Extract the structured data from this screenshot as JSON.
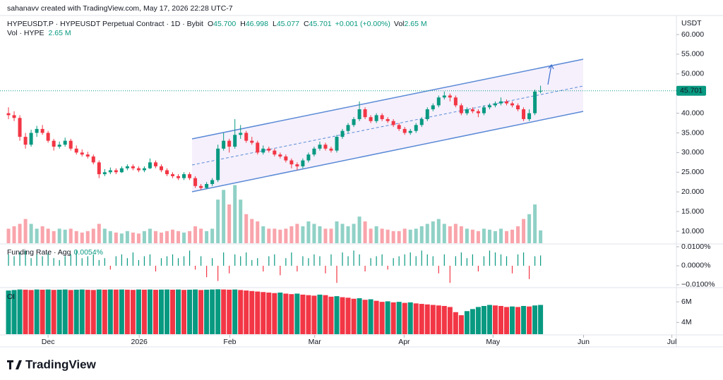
{
  "header": {
    "author_line": "sahanavv created with TradingView.com, May 17, 2026 22:28 UTC-7",
    "symbol": "HYPEUSDT.P · HYPEUSDT Perpetual Contract · 1D · Bybit",
    "ohlc_legend": [
      {
        "key": "O",
        "value": "45.700"
      },
      {
        "key": "H",
        "value": "46.998"
      },
      {
        "key": "L",
        "value": "45.077"
      },
      {
        "key": "C",
        "value": "45.701"
      }
    ],
    "change": "+0.001 (+0.00%)",
    "vol_key": "Vol",
    "vol_value": "2.65 M",
    "vol_study": "Vol · HYPE",
    "vol_study_value": "2.65 M"
  },
  "chart_data": {
    "type": "candlestick",
    "currency": "USDT",
    "up_color": "#089981",
    "down_color": "#f23645",
    "ohlc": [
      [
        40,
        41.5,
        38.5,
        39.5
      ],
      [
        39.5,
        40.5,
        38,
        38.8
      ],
      [
        38.8,
        39.5,
        33,
        34
      ],
      [
        34,
        35,
        31,
        32
      ],
      [
        32,
        35.8,
        31.5,
        35
      ],
      [
        35,
        36.8,
        34,
        36
      ],
      [
        36,
        37,
        34.5,
        35
      ],
      [
        35,
        35.5,
        32.5,
        33
      ],
      [
        33,
        33.5,
        30.5,
        31.5
      ],
      [
        31.5,
        32.8,
        31,
        32
      ],
      [
        32,
        33.8,
        31.5,
        33
      ],
      [
        33,
        33.5,
        30.5,
        31
      ],
      [
        31,
        31.8,
        29.5,
        30
      ],
      [
        30,
        30.8,
        29,
        29.5
      ],
      [
        29.5,
        30.2,
        28.5,
        29
      ],
      [
        29,
        29.5,
        27,
        27.5
      ],
      [
        27.5,
        28,
        23.5,
        24.5
      ],
      [
        24.5,
        25.8,
        24,
        25
      ],
      [
        25,
        26.2,
        24.5,
        25.5
      ],
      [
        25.5,
        26,
        24.5,
        25
      ],
      [
        25,
        26.5,
        24.8,
        26
      ],
      [
        26,
        27,
        25.5,
        26.5
      ],
      [
        26.5,
        27,
        25.5,
        26
      ],
      [
        26,
        26.5,
        25,
        25.5
      ],
      [
        25.5,
        26.5,
        25,
        26
      ],
      [
        26,
        28.5,
        25.8,
        27.5
      ],
      [
        27.5,
        28,
        26,
        26.5
      ],
      [
        26.5,
        27,
        25,
        25.5
      ],
      [
        25.5,
        26,
        24,
        24.5
      ],
      [
        24.5,
        25,
        23.5,
        24
      ],
      [
        24,
        24.5,
        23,
        23.5
      ],
      [
        23.5,
        25,
        23,
        24.5
      ],
      [
        24.5,
        25,
        23,
        23.5
      ],
      [
        23.5,
        24,
        21,
        21.5
      ],
      [
        21.5,
        22,
        20.5,
        21
      ],
      [
        21,
        22.5,
        20.8,
        22
      ],
      [
        22,
        23.5,
        21.5,
        23
      ],
      [
        23,
        32,
        22.5,
        31
      ],
      [
        31,
        35,
        30.5,
        33
      ],
      [
        33,
        33.5,
        30,
        31.5
      ],
      [
        31.5,
        38.5,
        31,
        34.5
      ],
      [
        34.5,
        37,
        33.5,
        35
      ],
      [
        35,
        35.5,
        32.5,
        33
      ],
      [
        33,
        34,
        32,
        32.5
      ],
      [
        32.5,
        33,
        29.5,
        30
      ],
      [
        30,
        31.8,
        29.5,
        31
      ],
      [
        31,
        31.5,
        30,
        30.5
      ],
      [
        30.5,
        31,
        29,
        29.5
      ],
      [
        29.5,
        30,
        28.5,
        29
      ],
      [
        29,
        29.5,
        27.5,
        28
      ],
      [
        28,
        28.5,
        26,
        27
      ],
      [
        27,
        27.5,
        25.5,
        26.5
      ],
      [
        26.5,
        28.5,
        26,
        28
      ],
      [
        28,
        30,
        27.5,
        29.5
      ],
      [
        29.5,
        31.5,
        29,
        31
      ],
      [
        31,
        32.8,
        30.5,
        32
      ],
      [
        32,
        32.5,
        30.5,
        31
      ],
      [
        31,
        31.5,
        30,
        30.5
      ],
      [
        30.5,
        34.5,
        30,
        34
      ],
      [
        34,
        36,
        33.5,
        35.5
      ],
      [
        35.5,
        37.5,
        35,
        37
      ],
      [
        37,
        39,
        36.5,
        38.5
      ],
      [
        38.5,
        43,
        38,
        41
      ],
      [
        41,
        41.5,
        38.5,
        39
      ],
      [
        39,
        39.5,
        37.5,
        38
      ],
      [
        38,
        40,
        37.5,
        39.5
      ],
      [
        39.5,
        40,
        38,
        38.5
      ],
      [
        38.5,
        39,
        37.5,
        38
      ],
      [
        38,
        38.5,
        36.5,
        37
      ],
      [
        37,
        37.5,
        35.5,
        36
      ],
      [
        36,
        36.5,
        34.5,
        35
      ],
      [
        35,
        36,
        34.5,
        35.5
      ],
      [
        35.5,
        37.5,
        35,
        37
      ],
      [
        37,
        39,
        36.5,
        38.5
      ],
      [
        38.5,
        41.5,
        38,
        41
      ],
      [
        41,
        42.5,
        40.5,
        42
      ],
      [
        42,
        44.5,
        41.5,
        44
      ],
      [
        44,
        45.5,
        43.5,
        44.5
      ],
      [
        44.5,
        45,
        43,
        44
      ],
      [
        44,
        44.5,
        41.5,
        42
      ],
      [
        42,
        42.5,
        39.5,
        40
      ],
      [
        40,
        41.5,
        39.5,
        41
      ],
      [
        41,
        41.5,
        40,
        40.5
      ],
      [
        40.5,
        41,
        39,
        40
      ],
      [
        40,
        42,
        39.5,
        41.5
      ],
      [
        41.5,
        42.5,
        41,
        42
      ],
      [
        42,
        43,
        41.5,
        42.5
      ],
      [
        42.5,
        44,
        42,
        43
      ],
      [
        43,
        43.5,
        42,
        42.5
      ],
      [
        42.5,
        43,
        41.5,
        42
      ],
      [
        42,
        42.5,
        40.5,
        41
      ],
      [
        41,
        41.5,
        38,
        38.5
      ],
      [
        38.5,
        41,
        38,
        40
      ],
      [
        40,
        46,
        39.5,
        45.5
      ],
      [
        45.7,
        46.998,
        45.077,
        45.701
      ]
    ],
    "volume": [
      3,
      3.5,
      4,
      5,
      4,
      3,
      3.5,
      3,
      2.5,
      3,
      2.8,
      3,
      2.5,
      2.2,
      2.5,
      3,
      4,
      3,
      2.5,
      2.2,
      2,
      2.5,
      2.2,
      2,
      2.5,
      3,
      2.5,
      2.2,
      2.5,
      2.8,
      2.5,
      2.2,
      2.5,
      3.5,
      3,
      2.5,
      3,
      9,
      11,
      8,
      12,
      9,
      6,
      5,
      4.5,
      3.5,
      3,
      3,
      2.8,
      3,
      3.5,
      4,
      3.5,
      4.5,
      4,
      3.5,
      3,
      3,
      4.5,
      4,
      3.5,
      4,
      5.5,
      4.5,
      3,
      3.5,
      3,
      2.8,
      2.5,
      2.5,
      3,
      2.8,
      3,
      3.5,
      4,
      4.5,
      5,
      4,
      3.5,
      4,
      3.5,
      3,
      2.8,
      2.5,
      3,
      2.8,
      2.5,
      3,
      2.5,
      2.8,
      3.5,
      5,
      6,
      8,
      2.65
    ],
    "volume_ylim": [
      0,
      16
    ],
    "ylim": [
      6.95,
      64.3
    ],
    "yticks": [
      {
        "value": 60,
        "label": "60.000"
      },
      {
        "value": 55,
        "label": "55.000"
      },
      {
        "value": 50,
        "label": "50.000"
      },
      {
        "value": 45,
        "label": "45.000"
      },
      {
        "value": 40,
        "label": "40.000"
      },
      {
        "value": 35,
        "label": "35.000"
      },
      {
        "value": 30,
        "label": "30.000"
      },
      {
        "value": 25,
        "label": "25.000"
      },
      {
        "value": 20,
        "label": "20.000"
      },
      {
        "value": 15,
        "label": "15.000"
      },
      {
        "value": 10,
        "label": "10.000"
      }
    ],
    "xlim": [
      -1.5,
      118
    ],
    "xticks": [
      {
        "value": 7,
        "label": "Dec"
      },
      {
        "value": 23.1,
        "label": "2026"
      },
      {
        "value": 39.1,
        "label": "Feb"
      },
      {
        "value": 54.1,
        "label": "Mar"
      },
      {
        "value": 69.9,
        "label": "Apr"
      },
      {
        "value": 85.6,
        "label": "May"
      },
      {
        "value": 101.6,
        "label": "Jun"
      },
      {
        "value": 117.2,
        "label": "Jul"
      }
    ],
    "last_price_label": "45.701",
    "funding": {
      "label": "Funding Rate · Agg",
      "value_label": "0.0054%",
      "ylim": [
        -0.0115,
        0.0111
      ],
      "yticks": [
        {
          "value": 0.01,
          "label": "0.0100%"
        },
        {
          "value": 0,
          "label": "0.0000%"
        },
        {
          "value": -0.01,
          "label": "−0.0100%"
        }
      ],
      "values": [
        0.006,
        0.005,
        0.007,
        0.008,
        0.004,
        0.006,
        0.005,
        0.007,
        0.004,
        0.003,
        0.005,
        0.006,
        0.008,
        0.004,
        0.005,
        0.006,
        0.003,
        0.004,
        -0.002,
        0.005,
        0.006,
        0.004,
        0.007,
        0.003,
        0.005,
        0.006,
        -0.003,
        0.004,
        0.005,
        0.006,
        0.004,
        0.005,
        0.008,
        -0.002,
        0.005,
        -0.006,
        0.004,
        -0.008,
        0.007,
        -0.004,
        0.006,
        0.005,
        0.007,
        0.003,
        0.004,
        -0.003,
        0.005,
        0.006,
        -0.005,
        0.004,
        0.007,
        -0.003,
        0.005,
        0.004,
        0.006,
        0.005,
        -0.004,
        0.006,
        -0.009,
        0.007,
        0.005,
        0.008,
        0.006,
        -0.003,
        0.004,
        0.005,
        0.006,
        -0.002,
        0.004,
        0.005,
        0.006,
        0.007,
        0.005,
        0.008,
        0.006,
        0.005,
        -0.004,
        0.006,
        -0.009,
        0.005,
        0.007,
        0.004,
        0.006,
        -0.003,
        0.005,
        0.008,
        0.007,
        0.006,
        0.005,
        -0.004,
        0.006,
        0.007,
        -0.007,
        0.005,
        0.0054
      ]
    },
    "oi": {
      "label": "OI",
      "ylim": [
        2.86,
        7.31
      ],
      "yticks": [
        {
          "value": 6,
          "label": "6M"
        },
        {
          "value": 4,
          "label": "4M"
        }
      ],
      "values": [
        7.1,
        7.15,
        7.2,
        7.18,
        7.15,
        7.2,
        7.18,
        7.2,
        7.16,
        7.18,
        7.2,
        7.15,
        7.18,
        7.2,
        7.17,
        7.15,
        7.2,
        7.18,
        7.2,
        7.19,
        7.2,
        7.18,
        7.16,
        7.2,
        7.18,
        7.2,
        7.17,
        7.19,
        7.2,
        7.18,
        7.2,
        7.16,
        7.18,
        7.2,
        7.15,
        7.18,
        7.2,
        7.22,
        7.2,
        7.18,
        7.2,
        7.15,
        7.1,
        7.05,
        7.0,
        6.95,
        6.9,
        6.85,
        6.9,
        6.8,
        6.75,
        6.8,
        6.7,
        6.65,
        6.6,
        6.7,
        6.65,
        6.5,
        6.55,
        6.45,
        6.4,
        6.3,
        6.35,
        6.2,
        6.25,
        6.1,
        6.0,
        6.05,
        5.95,
        6.0,
        5.9,
        5.95,
        5.85,
        5.8,
        5.75,
        5.7,
        5.65,
        5.6,
        5.5,
        5.0,
        4.7,
        5.1,
        5.3,
        5.5,
        5.6,
        5.7,
        5.65,
        5.6,
        5.5,
        5.55,
        5.5,
        5.6,
        5.55,
        5.65,
        5.7
      ]
    }
  },
  "footer": {
    "brand": "TradingView"
  }
}
